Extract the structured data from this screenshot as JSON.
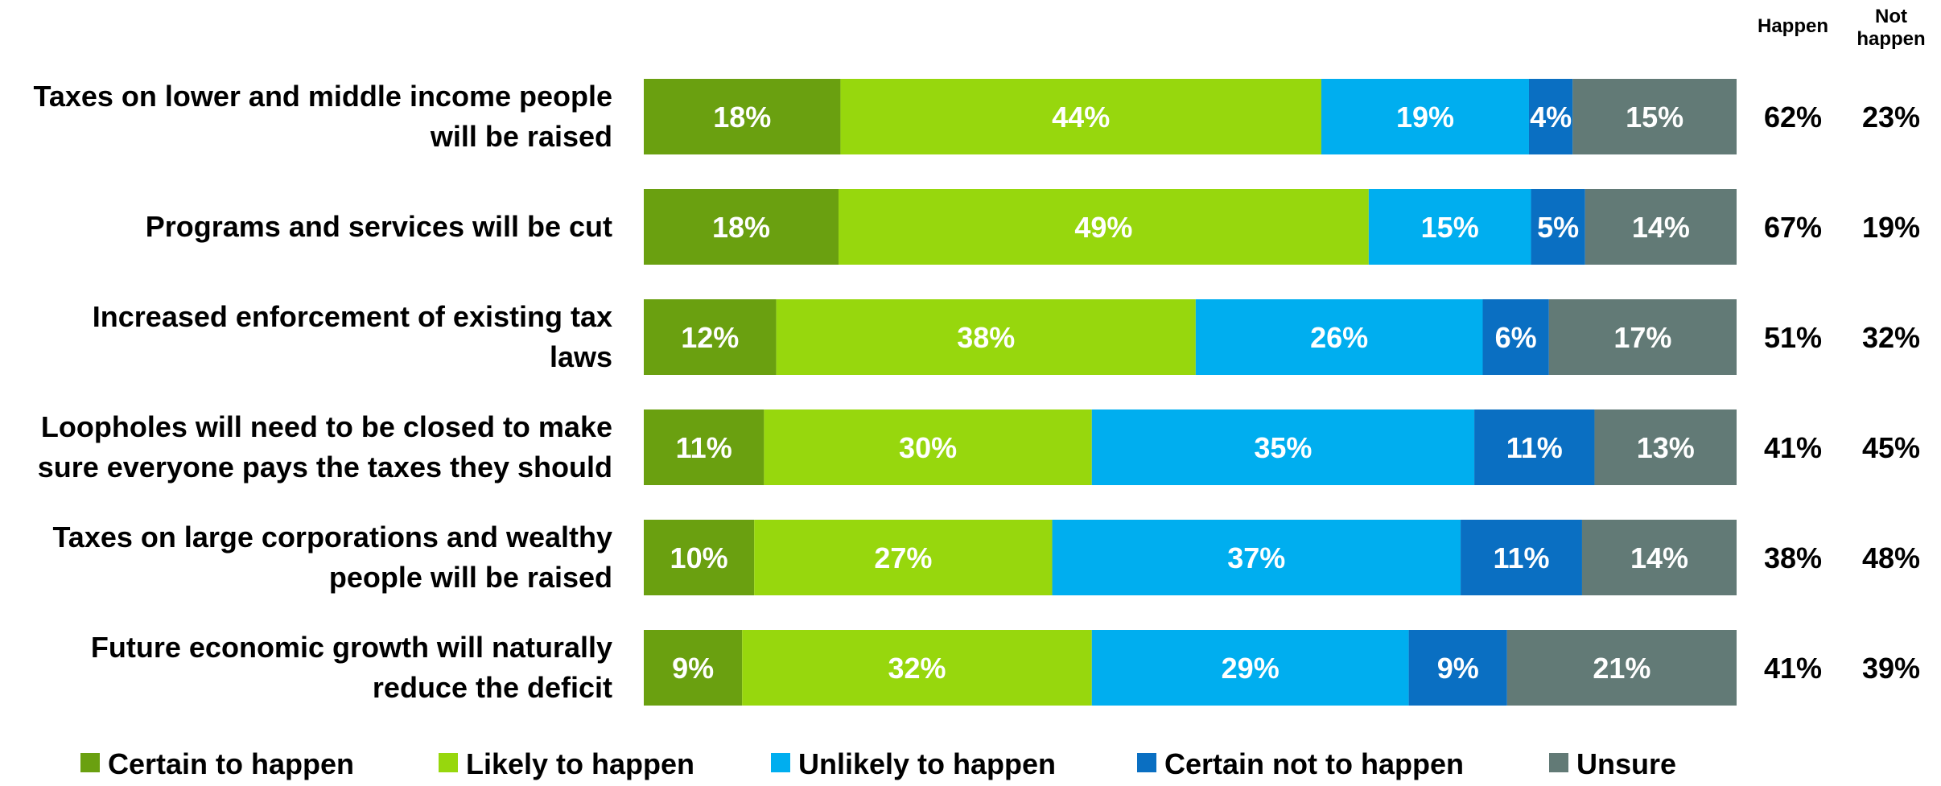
{
  "chart_data": {
    "type": "bar",
    "orientation": "horizontal",
    "stacked": true,
    "categories": [
      [
        "Taxes on lower and middle income people",
        "will be raised"
      ],
      [
        "Programs and services will be cut"
      ],
      [
        "Increased enforcement of existing tax",
        "laws"
      ],
      [
        "Loopholes will need to be closed to make",
        "sure everyone pays the taxes they should"
      ],
      [
        "Taxes on large corporations and wealthy",
        "people will be raised"
      ],
      [
        "Future economic growth will naturally",
        "reduce the deficit"
      ]
    ],
    "series": [
      {
        "name": "Certain to happen",
        "color": "#6aa010",
        "values": [
          18,
          18,
          12,
          11,
          10,
          9
        ]
      },
      {
        "name": "Likely to happen",
        "color": "#97d70d",
        "values": [
          44,
          49,
          38,
          30,
          27,
          32
        ]
      },
      {
        "name": "Unlikely to happen",
        "color": "#00aeef",
        "values": [
          19,
          15,
          26,
          35,
          37,
          29
        ]
      },
      {
        "name": "Certain not to happen",
        "color": "#0a6fc2",
        "values": [
          4,
          5,
          6,
          11,
          11,
          9
        ]
      },
      {
        "name": "Unsure",
        "color": "#627a76",
        "values": [
          15,
          14,
          17,
          13,
          14,
          21
        ]
      }
    ],
    "value_suffix": "%",
    "summary_columns": [
      {
        "header": [
          "Happen"
        ],
        "values": [
          62,
          67,
          51,
          41,
          38,
          41
        ]
      },
      {
        "header": [
          "Not",
          "happen"
        ],
        "values": [
          23,
          19,
          32,
          45,
          48,
          39
        ]
      }
    ],
    "legend_position": "bottom",
    "grid": false
  }
}
